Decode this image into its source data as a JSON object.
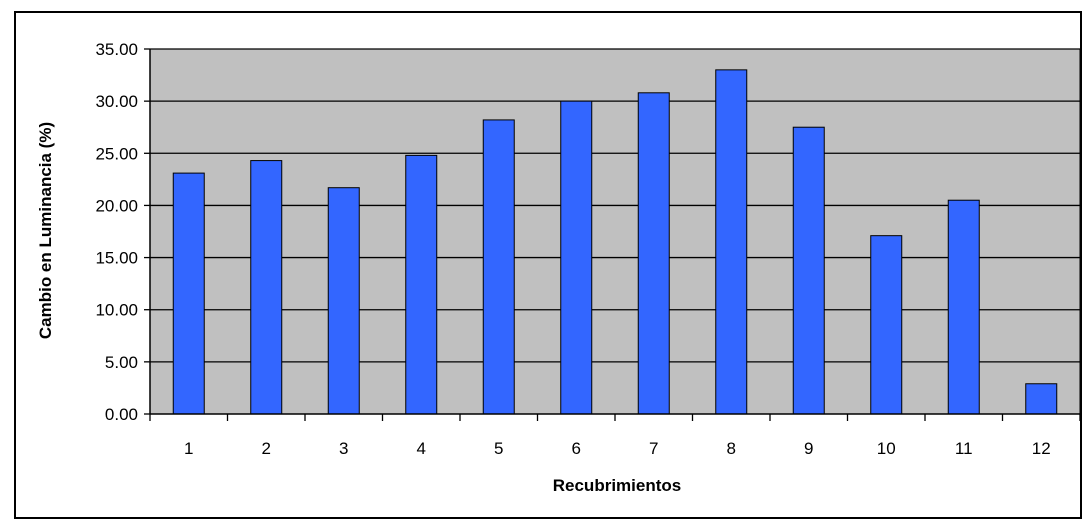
{
  "colors": {
    "plot_background": "#c0c0c0",
    "bar_fill": "#3366ff",
    "bar_stroke": "#000000",
    "gridline": "#000000"
  },
  "chart_data": {
    "type": "bar",
    "title": "",
    "xlabel": "Recubrimientos",
    "ylabel": "Cambio en Luminancia (%)",
    "categories": [
      "1",
      "2",
      "3",
      "4",
      "5",
      "6",
      "7",
      "8",
      "9",
      "10",
      "11",
      "12"
    ],
    "values": [
      23.1,
      24.3,
      21.7,
      24.8,
      28.2,
      30.0,
      30.8,
      33.0,
      27.5,
      17.1,
      20.5,
      2.9
    ],
    "ylim": [
      0,
      35
    ],
    "yticks": [
      "0.00",
      "5.00",
      "10.00",
      "15.00",
      "20.00",
      "25.00",
      "30.00",
      "35.00"
    ],
    "grid": true,
    "legend": "none"
  }
}
